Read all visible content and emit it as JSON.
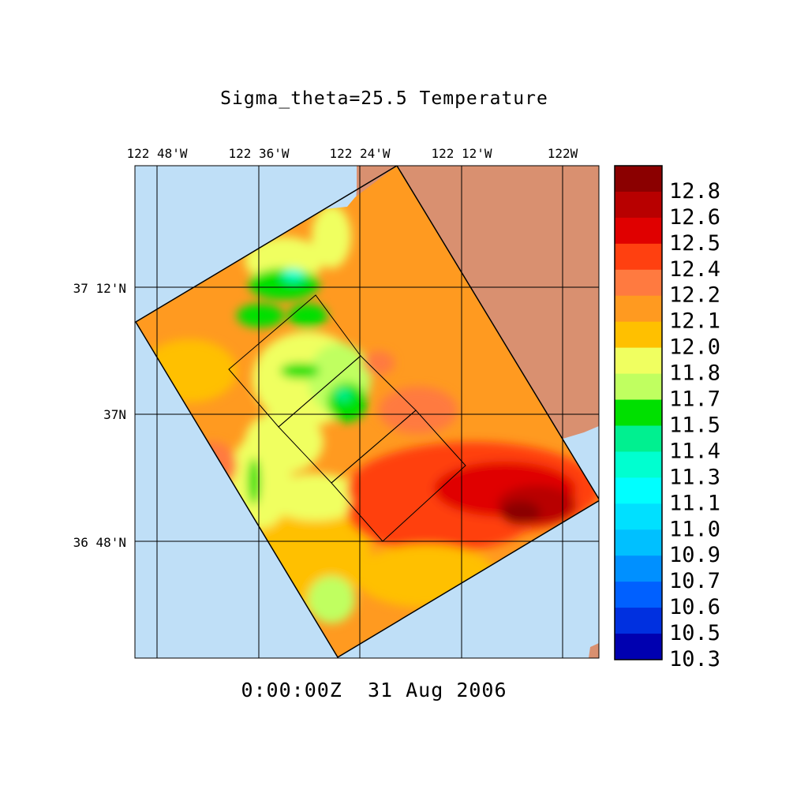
{
  "title": "Sigma_theta=25.5 Temperature",
  "timestamp": "0:00:00Z  31 Aug 2006",
  "lon_labels": [
    "122 48'W",
    "122 36'W",
    "122 24'W",
    "122 12'W",
    "122W"
  ],
  "lat_labels": [
    "37 12'N",
    "37N",
    "36 48'N"
  ],
  "colorbar": {
    "labels": [
      "12.8",
      "12.6",
      "12.5",
      "12.4",
      "12.2",
      "12.1",
      "12.0",
      "11.8",
      "11.7",
      "11.5",
      "11.4",
      "11.3",
      "11.1",
      "11.0",
      "10.9",
      "10.7",
      "10.6",
      "10.5",
      "10.3"
    ],
    "colors": [
      "#8b0000",
      "#b80000",
      "#e00000",
      "#ff4010",
      "#ff7a40",
      "#ff9a20",
      "#ffc000",
      "#f0ff60",
      "#c0ff60",
      "#00e000",
      "#00f090",
      "#00ffd0",
      "#00ffff",
      "#00e0ff",
      "#00c0ff",
      "#0090ff",
      "#0060ff",
      "#0030e0",
      "#0000b0"
    ]
  },
  "colors": {
    "ocean": "#bfdff7",
    "land": "#d99070"
  }
}
